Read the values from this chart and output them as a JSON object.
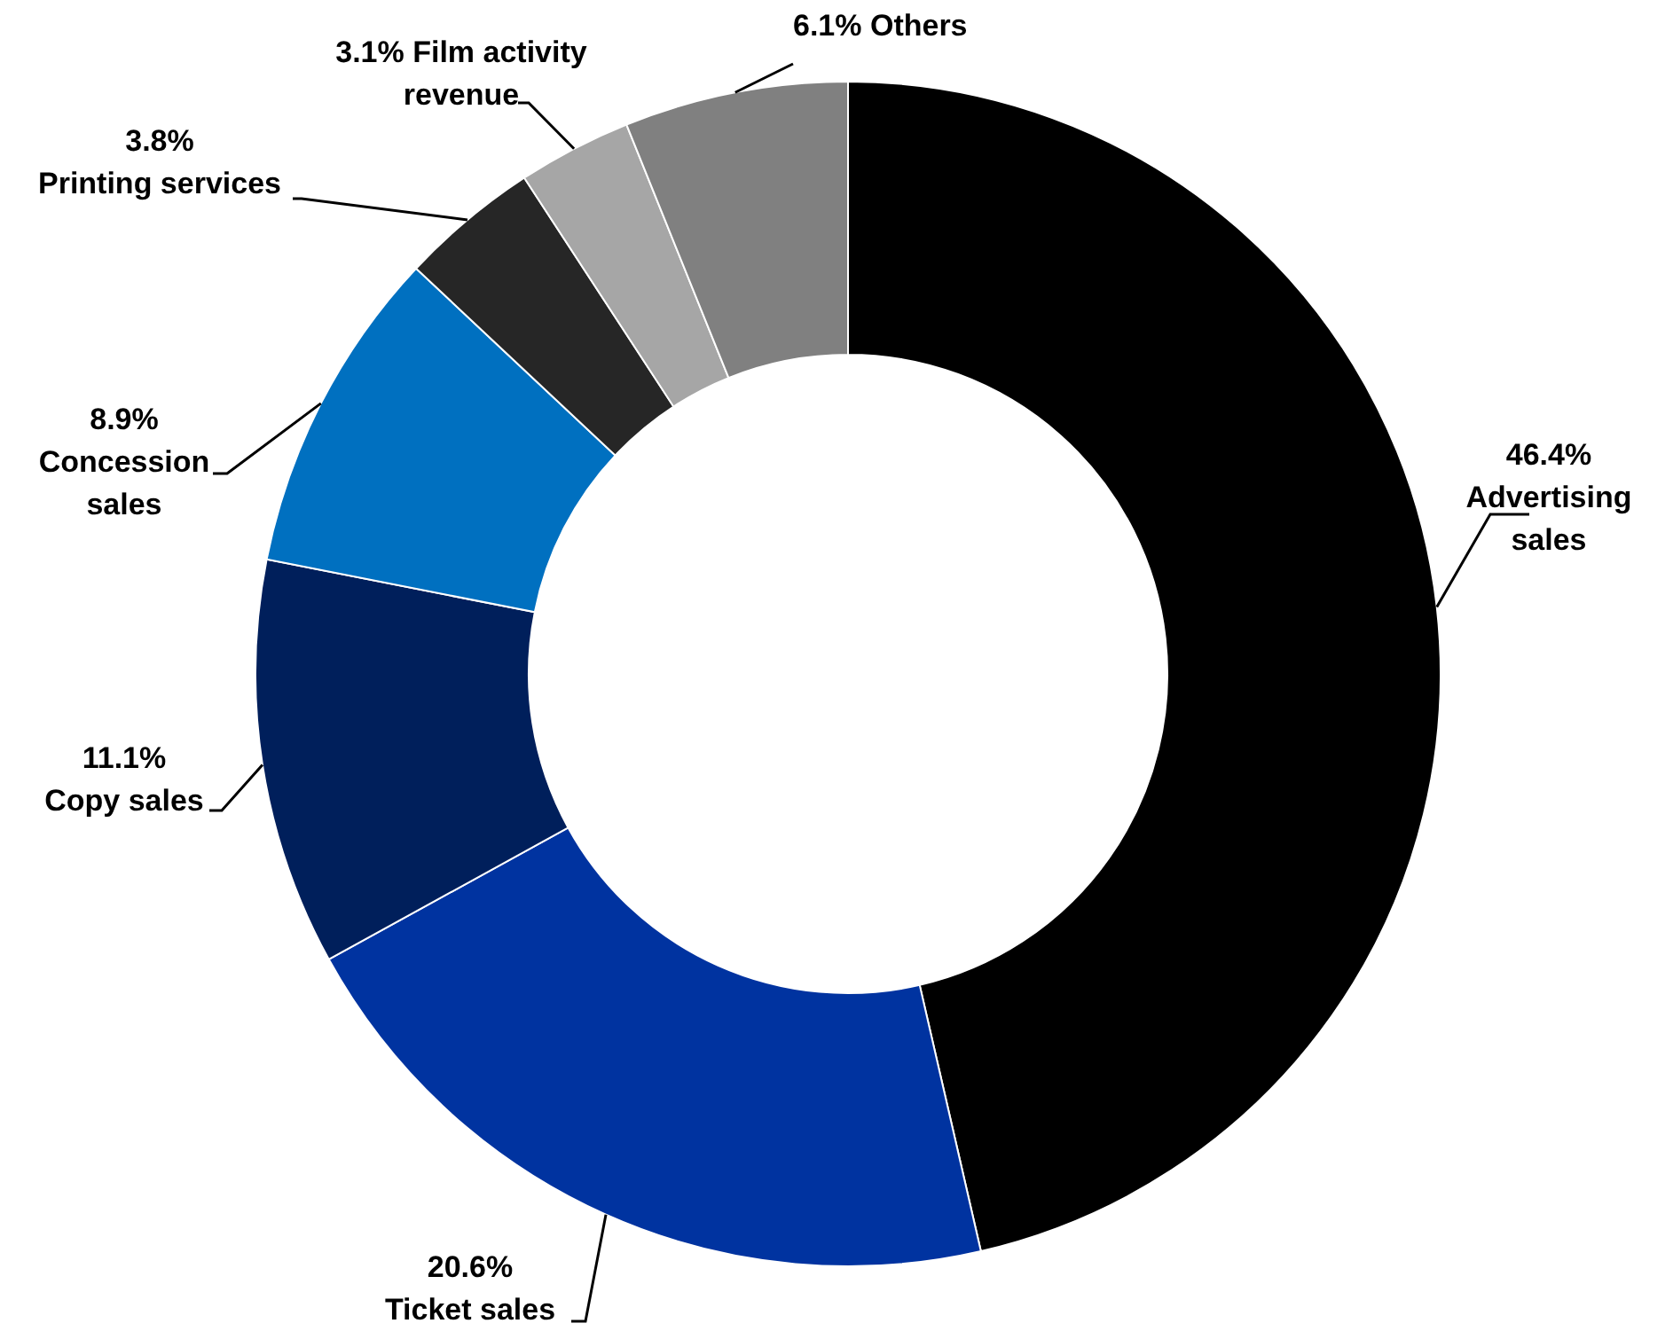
{
  "chart_data": {
    "type": "donut",
    "categories": [
      "Advertising sales",
      "Ticket sales",
      "Copy sales",
      "Concession sales",
      "Printing services",
      "Film activity revenue",
      "Others"
    ],
    "values": [
      46.4,
      20.6,
      11.1,
      8.9,
      3.8,
      3.1,
      6.1
    ],
    "value_labels": [
      "46.4%",
      "20.6%",
      "11.1%",
      "8.9%",
      "3.8%",
      "3.1%",
      "6.1%"
    ],
    "colors": [
      "#000000",
      "#0033a0",
      "#001f5b",
      "#0070c0",
      "#262626",
      "#a6a6a6",
      "#808080"
    ]
  }
}
